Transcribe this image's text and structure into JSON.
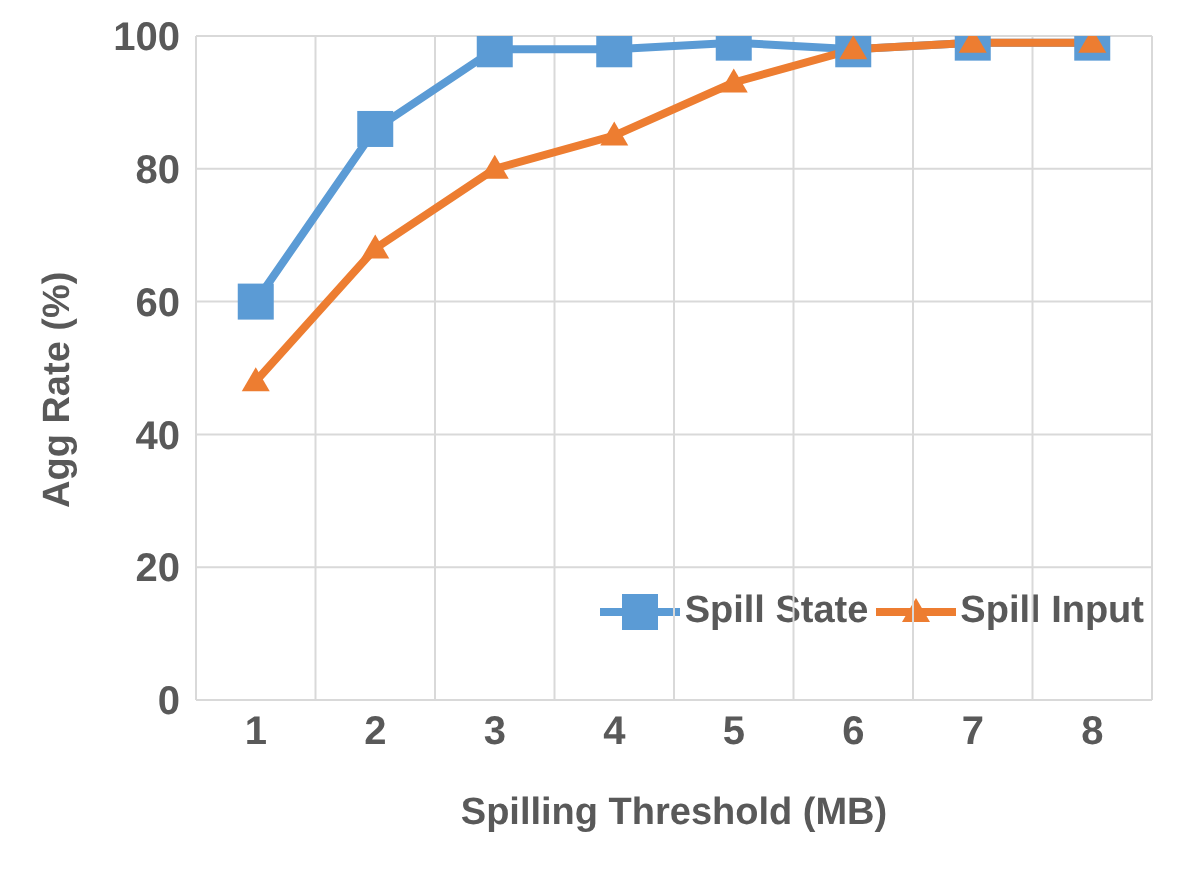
{
  "chart_data": {
    "type": "line",
    "xlabel": "Spilling Threshold (MB)",
    "ylabel": "Agg Rate (%)",
    "categories": [
      "1",
      "2",
      "3",
      "4",
      "5",
      "6",
      "7",
      "8"
    ],
    "series": [
      {
        "name": "Spill State",
        "color": "#5b9bd5",
        "marker": "square",
        "values": [
          60,
          86,
          98,
          98,
          99,
          98,
          99,
          99
        ]
      },
      {
        "name": "Spill Input",
        "color": "#ed7d31",
        "marker": "triangle",
        "values": [
          48,
          68,
          80,
          85,
          93,
          98,
          99,
          99
        ]
      }
    ],
    "ylim": [
      0,
      100
    ],
    "yticks": [
      0,
      20,
      40,
      60,
      80,
      100
    ],
    "grid": true,
    "legend": "bottom right",
    "line_style": "solid"
  }
}
